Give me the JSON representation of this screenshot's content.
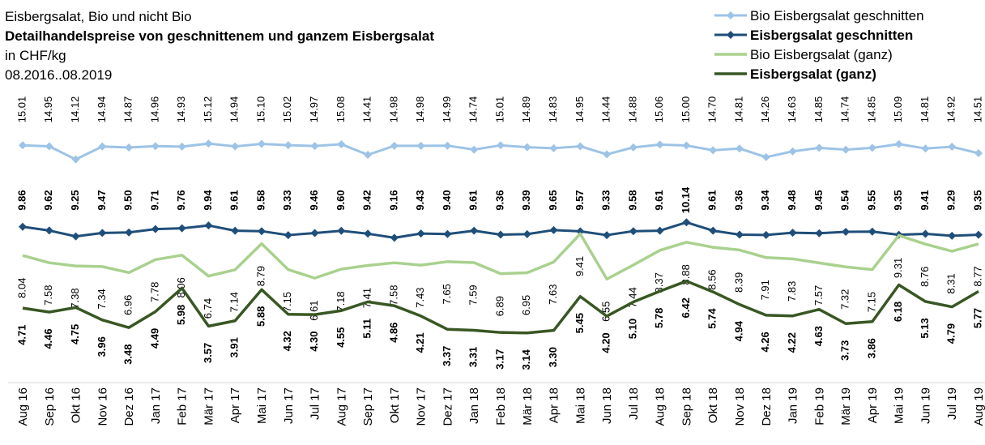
{
  "chart_data": {
    "type": "line",
    "subtitle": "Eisbergsalat, Bio und nicht Bio",
    "title": "Detailhandelspreise von geschnittenem und ganzem Eisbergsalat",
    "unit": "in CHF/kg",
    "period": "08.2016..08.2019",
    "categories": [
      "Aug 16",
      "Sep 16",
      "Okt 16",
      "Nov 16",
      "Dez 16",
      "Jan 17",
      "Feb 17",
      "Mär 17",
      "Apr 17",
      "Mai 17",
      "Jun 17",
      "Jul 17",
      "Aug 17",
      "Sep 17",
      "Okt 17",
      "Nov 17",
      "Dez 17",
      "Jan 18",
      "Feb 18",
      "Mär 18",
      "Apr 18",
      "Mai 18",
      "Jun 18",
      "Jul 18",
      "Aug 18",
      "Sep 18",
      "Okt 18",
      "Nov 18",
      "Dez 18",
      "Jan 19",
      "Feb 19",
      "Mär 19",
      "Apr 19",
      "Mai 19",
      "Jun 19",
      "Jul 19",
      "Aug 19"
    ],
    "ylim": [
      0,
      18
    ],
    "series": [
      {
        "name": "Bio Eisbergsalat geschnitten",
        "color": "#9dc3e6",
        "values": [
          15.01,
          14.95,
          14.12,
          14.94,
          14.87,
          14.96,
          14.93,
          15.12,
          14.94,
          15.1,
          15.02,
          14.97,
          15.08,
          14.41,
          14.98,
          14.98,
          14.99,
          14.74,
          15.01,
          14.89,
          14.83,
          14.95,
          14.44,
          14.88,
          15.06,
          15.0,
          14.7,
          14.81,
          14.26,
          14.63,
          14.85,
          14.74,
          14.85,
          15.09,
          14.81,
          14.92,
          14.51
        ],
        "value_labels": [
          "15.01",
          "14.95",
          "14.12",
          "14.94",
          "14.87",
          "14.96",
          "14.93",
          "15.12",
          "14.94",
          "15.10",
          "15.02",
          "14.97",
          "15.08",
          "14.41",
          "14.98",
          "14.98",
          "14.99",
          "14.74",
          "15.01",
          "14.89",
          "14.83",
          "14.95",
          "14.44",
          "14.88",
          "15.06",
          "15.00",
          "14.70",
          "14.81",
          "14.26",
          "14.63",
          "14.85",
          "14.74",
          "14.85",
          "15.09",
          "14.81",
          "14.92",
          "14.51"
        ]
      },
      {
        "name": "Eisbergsalat geschnitten",
        "color": "#1f4e79",
        "values": [
          9.86,
          9.62,
          9.25,
          9.47,
          9.5,
          9.71,
          9.76,
          9.94,
          9.61,
          9.58,
          9.33,
          9.46,
          9.6,
          9.42,
          9.16,
          9.43,
          9.4,
          9.61,
          9.36,
          9.39,
          9.65,
          9.57,
          9.33,
          9.58,
          9.61,
          10.14,
          9.61,
          9.36,
          9.34,
          9.48,
          9.45,
          9.54,
          9.55,
          9.35,
          9.41,
          9.29,
          9.35
        ],
        "value_labels": [
          "9.86",
          "9.62",
          "9.25",
          "9.47",
          "9.50",
          "9.71",
          "9.76",
          "9.94",
          "9.61",
          "9.58",
          "9.33",
          "9.46",
          "9.60",
          "9.42",
          "9.16",
          "9.43",
          "9.40",
          "9.61",
          "9.36",
          "9.39",
          "9.65",
          "9.57",
          "9.33",
          "9.58",
          "9.61",
          "10.14",
          "9.61",
          "9.36",
          "9.34",
          "9.48",
          "9.45",
          "9.54",
          "9.55",
          "9.35",
          "9.41",
          "9.29",
          "9.35"
        ]
      },
      {
        "name": "Bio Eisbergsalat (ganz)",
        "color": "#a9d18e",
        "values": [
          8.04,
          7.58,
          7.38,
          7.34,
          6.96,
          7.78,
          8.06,
          6.74,
          7.14,
          8.79,
          7.15,
          6.61,
          7.18,
          7.41,
          7.58,
          7.43,
          7.65,
          7.59,
          6.89,
          6.95,
          7.63,
          9.41,
          6.55,
          7.44,
          8.37,
          8.88,
          8.56,
          8.39,
          7.91,
          7.83,
          7.57,
          7.32,
          7.15,
          9.31,
          8.76,
          8.31,
          8.77
        ],
        "value_labels": [
          "8.04",
          "7.58",
          "7.38",
          "7.34",
          "6.96",
          "7.78",
          "8.06",
          "6.74",
          "7.14",
          "8.79",
          "7.15",
          "6.61",
          "7.18",
          "7.41",
          "7.58",
          "7.43",
          "7.65",
          "7.59",
          "6.89",
          "6.95",
          "7.63",
          "9.41",
          "6.55",
          "7.44",
          "8.37",
          "8.88",
          "8.56",
          "8.39",
          "7.91",
          "7.83",
          "7.57",
          "7.32",
          "7.15",
          "9.31",
          "8.76",
          "8.31",
          "8.77"
        ]
      },
      {
        "name": "Eisbergsalat (ganz)",
        "color": "#385723",
        "values": [
          4.71,
          4.46,
          4.75,
          3.96,
          3.48,
          4.49,
          5.98,
          3.57,
          3.91,
          5.88,
          4.32,
          4.3,
          4.55,
          5.11,
          4.86,
          4.21,
          3.37,
          3.31,
          3.17,
          3.14,
          3.3,
          5.45,
          4.2,
          5.1,
          5.78,
          6.42,
          5.74,
          4.94,
          4.26,
          4.22,
          4.63,
          3.73,
          3.86,
          6.18,
          5.13,
          4.79,
          5.77
        ],
        "value_labels": [
          "4.71",
          "4.46",
          "4.75",
          "3.96",
          "3.48",
          "4.49",
          "5.98",
          "3.57",
          "3.91",
          "5.88",
          "4.32",
          "4.30",
          "4.55",
          "5.11",
          "4.86",
          "4.21",
          "3.37",
          "3.31",
          "3.17",
          "3.14",
          "3.30",
          "5.45",
          "4.20",
          "5.10",
          "5.78",
          "6.42",
          "5.74",
          "4.94",
          "4.26",
          "4.22",
          "4.63",
          "3.73",
          "3.86",
          "6.18",
          "5.13",
          "4.79",
          "5.77"
        ]
      }
    ]
  }
}
